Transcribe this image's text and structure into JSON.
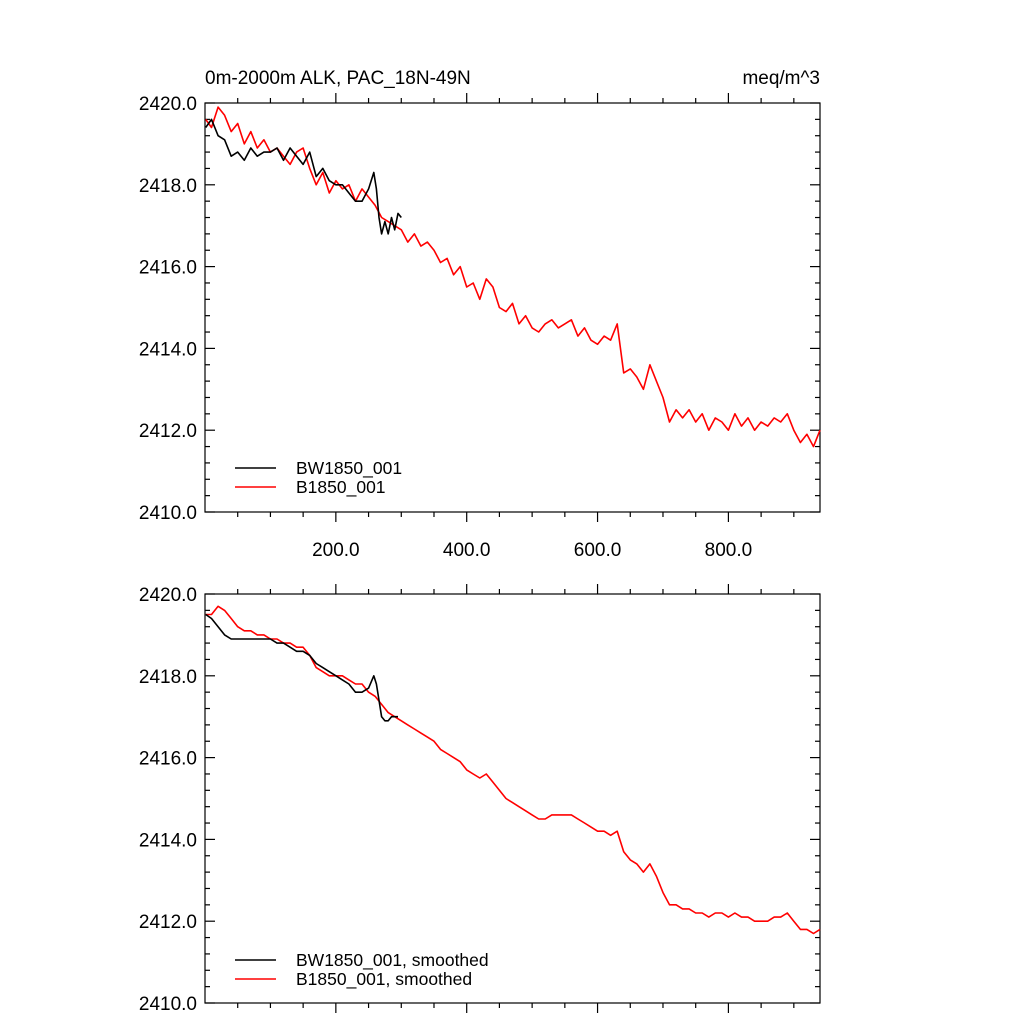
{
  "chart_data": [
    {
      "type": "line",
      "title_left": "0m-2000m ALK, PAC_18N-49N",
      "title_right": "meq/m^3",
      "xlim": [
        0,
        940
      ],
      "ylim": [
        2410,
        2420
      ],
      "x_ticks": [
        200,
        400,
        600,
        800
      ],
      "x_tick_labels": [
        "200.0",
        "400.0",
        "600.0",
        "800.0"
      ],
      "y_ticks": [
        2410,
        2412,
        2414,
        2416,
        2418,
        2420
      ],
      "y_tick_labels": [
        "2410.0",
        "2412.0",
        "2414.0",
        "2416.0",
        "2418.0",
        "2420.0"
      ],
      "legend_position": "bottom-left",
      "series": [
        {
          "name": "BW1850_001",
          "color": "#000000",
          "x": [
            1,
            10,
            20,
            30,
            40,
            50,
            60,
            70,
            80,
            90,
            100,
            110,
            120,
            130,
            140,
            150,
            160,
            170,
            180,
            190,
            200,
            210,
            220,
            230,
            240,
            250,
            258,
            262,
            266,
            270,
            275,
            280,
            285,
            290,
            295,
            300
          ],
          "y": [
            2419.4,
            2419.6,
            2419.2,
            2419.1,
            2418.7,
            2418.8,
            2418.6,
            2418.9,
            2418.7,
            2418.8,
            2418.8,
            2418.9,
            2418.6,
            2418.9,
            2418.7,
            2418.5,
            2418.8,
            2418.2,
            2418.4,
            2418.1,
            2418.0,
            2418.0,
            2417.8,
            2417.6,
            2417.6,
            2417.9,
            2418.3,
            2417.9,
            2417.2,
            2416.8,
            2417.1,
            2416.8,
            2417.2,
            2416.9,
            2417.3,
            2417.2
          ]
        },
        {
          "name": "B1850_001",
          "color": "#ff0000",
          "x": [
            1,
            10,
            20,
            30,
            40,
            50,
            60,
            70,
            80,
            90,
            100,
            110,
            120,
            130,
            140,
            150,
            160,
            170,
            180,
            190,
            200,
            210,
            220,
            230,
            240,
            250,
            260,
            270,
            280,
            290,
            300,
            310,
            320,
            330,
            340,
            350,
            360,
            370,
            380,
            390,
            400,
            410,
            420,
            430,
            440,
            450,
            460,
            470,
            480,
            490,
            500,
            510,
            520,
            530,
            540,
            550,
            560,
            570,
            580,
            590,
            600,
            610,
            620,
            630,
            640,
            650,
            660,
            670,
            680,
            690,
            700,
            710,
            720,
            730,
            740,
            750,
            760,
            770,
            780,
            790,
            800,
            810,
            820,
            830,
            840,
            850,
            860,
            870,
            880,
            890,
            900,
            910,
            920,
            930,
            940
          ],
          "y": [
            2419.6,
            2419.4,
            2419.9,
            2419.7,
            2419.3,
            2419.5,
            2419.0,
            2419.3,
            2418.9,
            2419.1,
            2418.8,
            2418.9,
            2418.7,
            2418.5,
            2418.8,
            2418.9,
            2418.4,
            2418.0,
            2418.3,
            2417.8,
            2418.1,
            2417.9,
            2418.0,
            2417.6,
            2417.9,
            2417.7,
            2417.5,
            2417.2,
            2417.1,
            2417.0,
            2416.9,
            2416.6,
            2416.8,
            2416.5,
            2416.6,
            2416.4,
            2416.1,
            2416.2,
            2415.8,
            2416.0,
            2415.5,
            2415.6,
            2415.2,
            2415.7,
            2415.5,
            2415.0,
            2414.9,
            2415.1,
            2414.6,
            2414.8,
            2414.5,
            2414.4,
            2414.6,
            2414.7,
            2414.5,
            2414.6,
            2414.7,
            2414.3,
            2414.5,
            2414.2,
            2414.1,
            2414.3,
            2414.2,
            2414.6,
            2413.4,
            2413.5,
            2413.3,
            2413.0,
            2413.6,
            2413.2,
            2412.8,
            2412.2,
            2412.5,
            2412.3,
            2412.5,
            2412.2,
            2412.4,
            2412.0,
            2412.3,
            2412.2,
            2412.0,
            2412.4,
            2412.1,
            2412.3,
            2412.0,
            2412.2,
            2412.1,
            2412.3,
            2412.2,
            2412.4,
            2412.0,
            2411.7,
            2411.9,
            2411.6,
            2412.0
          ]
        }
      ]
    },
    {
      "type": "line",
      "xlim": [
        0,
        940
      ],
      "ylim": [
        2410,
        2420
      ],
      "y_ticks": [
        2410,
        2412,
        2414,
        2416,
        2418,
        2420
      ],
      "y_tick_labels": [
        "2410.0",
        "2412.0",
        "2414.0",
        "2416.0",
        "2418.0",
        "2420.0"
      ],
      "legend_position": "bottom-left",
      "series": [
        {
          "name": "BW1850_001, smoothed",
          "color": "#000000",
          "x": [
            1,
            10,
            20,
            30,
            40,
            50,
            60,
            70,
            80,
            90,
            100,
            110,
            120,
            130,
            140,
            150,
            160,
            170,
            180,
            190,
            200,
            210,
            220,
            230,
            240,
            250,
            258,
            262,
            266,
            270,
            275,
            280,
            285,
            290,
            295
          ],
          "y": [
            2419.5,
            2419.4,
            2419.2,
            2419.0,
            2418.9,
            2418.9,
            2418.9,
            2418.9,
            2418.9,
            2418.9,
            2418.9,
            2418.8,
            2418.8,
            2418.7,
            2418.6,
            2418.6,
            2418.5,
            2418.3,
            2418.2,
            2418.1,
            2418.0,
            2417.9,
            2417.8,
            2417.6,
            2417.6,
            2417.7,
            2418.0,
            2417.8,
            2417.4,
            2417.0,
            2416.9,
            2416.9,
            2417.0,
            2417.0,
            2417.0
          ]
        },
        {
          "name": "B1850_001, smoothed",
          "color": "#ff0000",
          "x": [
            1,
            10,
            20,
            30,
            40,
            50,
            60,
            70,
            80,
            90,
            100,
            110,
            120,
            130,
            140,
            150,
            160,
            170,
            180,
            190,
            200,
            210,
            220,
            230,
            240,
            250,
            260,
            270,
            280,
            290,
            300,
            310,
            320,
            330,
            340,
            350,
            360,
            370,
            380,
            390,
            400,
            410,
            420,
            430,
            440,
            450,
            460,
            470,
            480,
            490,
            500,
            510,
            520,
            530,
            540,
            550,
            560,
            570,
            580,
            590,
            600,
            610,
            620,
            630,
            640,
            650,
            660,
            670,
            680,
            690,
            700,
            710,
            720,
            730,
            740,
            750,
            760,
            770,
            780,
            790,
            800,
            810,
            820,
            830,
            840,
            850,
            860,
            870,
            880,
            890,
            900,
            910,
            920,
            930,
            940
          ],
          "y": [
            2419.5,
            2419.5,
            2419.7,
            2419.6,
            2419.4,
            2419.2,
            2419.1,
            2419.1,
            2419.0,
            2419.0,
            2418.9,
            2418.9,
            2418.8,
            2418.8,
            2418.7,
            2418.7,
            2418.5,
            2418.2,
            2418.1,
            2418.0,
            2418.0,
            2418.0,
            2417.9,
            2417.8,
            2417.8,
            2417.6,
            2417.5,
            2417.3,
            2417.1,
            2417.0,
            2416.9,
            2416.8,
            2416.7,
            2416.6,
            2416.5,
            2416.4,
            2416.2,
            2416.1,
            2416.0,
            2415.9,
            2415.7,
            2415.6,
            2415.5,
            2415.6,
            2415.4,
            2415.2,
            2415.0,
            2414.9,
            2414.8,
            2414.7,
            2414.6,
            2414.5,
            2414.5,
            2414.6,
            2414.6,
            2414.6,
            2414.6,
            2414.5,
            2414.4,
            2414.3,
            2414.2,
            2414.2,
            2414.1,
            2414.2,
            2413.7,
            2413.5,
            2413.4,
            2413.2,
            2413.4,
            2413.1,
            2412.7,
            2412.4,
            2412.4,
            2412.3,
            2412.3,
            2412.2,
            2412.2,
            2412.1,
            2412.2,
            2412.2,
            2412.1,
            2412.2,
            2412.1,
            2412.1,
            2412.0,
            2412.0,
            2412.0,
            2412.1,
            2412.1,
            2412.2,
            2412.0,
            2411.8,
            2411.8,
            2411.7,
            2411.8
          ]
        }
      ]
    }
  ]
}
